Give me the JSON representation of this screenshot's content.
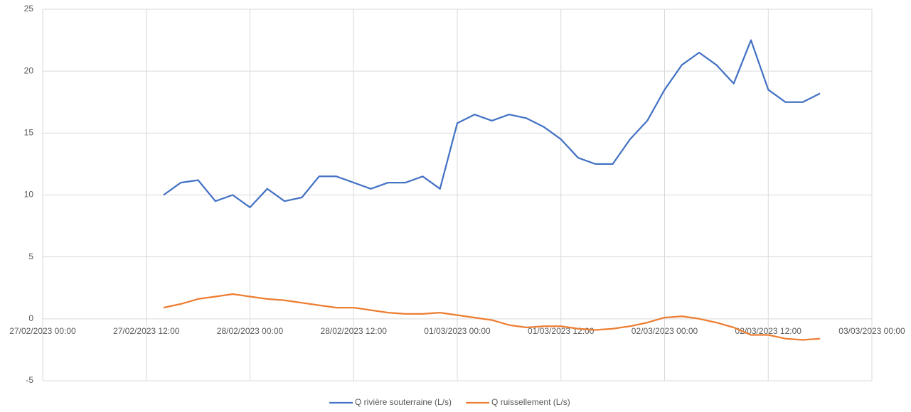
{
  "chart_data": {
    "type": "line",
    "x": [
      "27/02/2023 14:00",
      "27/02/2023 16:00",
      "27/02/2023 18:00",
      "27/02/2023 20:00",
      "27/02/2023 22:00",
      "28/02/2023 00:00",
      "28/02/2023 02:00",
      "28/02/2023 04:00",
      "28/02/2023 06:00",
      "28/02/2023 08:00",
      "28/02/2023 10:00",
      "28/02/2023 12:00",
      "28/02/2023 14:00",
      "28/02/2023 16:00",
      "28/02/2023 18:00",
      "28/02/2023 20:00",
      "28/02/2023 22:00",
      "01/03/2023 00:00",
      "01/03/2023 02:00",
      "01/03/2023 04:00",
      "01/03/2023 06:00",
      "01/03/2023 08:00",
      "01/03/2023 10:00",
      "01/03/2023 12:00",
      "01/03/2023 14:00",
      "01/03/2023 16:00",
      "01/03/2023 18:00",
      "01/03/2023 20:00",
      "01/03/2023 22:00",
      "02/03/2023 00:00",
      "02/03/2023 02:00",
      "02/03/2023 04:00",
      "02/03/2023 06:00",
      "02/03/2023 08:00",
      "02/03/2023 10:00",
      "02/03/2023 12:00",
      "02/03/2023 14:00",
      "02/03/2023 16:00",
      "02/03/2023 18:00"
    ],
    "series": [
      {
        "name": "Q rivière souterraine (L/s)",
        "color": "#4472c4",
        "values": [
          10.0,
          11.0,
          11.2,
          9.5,
          10.0,
          9.0,
          10.5,
          9.5,
          9.8,
          11.5,
          11.5,
          11.0,
          10.5,
          11.0,
          11.0,
          11.5,
          10.5,
          15.8,
          16.5,
          16.0,
          16.5,
          16.2,
          15.5,
          14.5,
          13.0,
          12.5,
          12.5,
          14.5,
          16.0,
          18.5,
          20.5,
          21.5,
          20.5,
          19.0,
          22.5,
          18.5,
          17.5,
          17.5,
          18.2
        ]
      },
      {
        "name": "Q ruissellement (L/s)",
        "color": "#ed7d31",
        "values": [
          0.9,
          1.2,
          1.6,
          1.8,
          2.0,
          1.8,
          1.6,
          1.5,
          1.3,
          1.1,
          0.9,
          0.9,
          0.7,
          0.5,
          0.4,
          0.4,
          0.5,
          0.3,
          0.1,
          -0.1,
          -0.5,
          -0.7,
          -0.6,
          -0.6,
          -0.8,
          -0.9,
          -0.8,
          -0.6,
          -0.3,
          0.1,
          0.2,
          0.0,
          -0.3,
          -0.7,
          -1.3,
          -1.3,
          -1.6,
          -1.7,
          -1.6
        ]
      }
    ],
    "xlim": [
      "27/02/2023 00:00",
      "03/03/2023 00:00"
    ],
    "xticks": [
      "27/02/2023 00:00",
      "27/02/2023 12:00",
      "28/02/2023 00:00",
      "28/02/2023 12:00",
      "01/03/2023 00:00",
      "01/03/2023 12:00",
      "02/03/2023 00:00",
      "02/03/2023 12:00",
      "03/03/2023 00:00"
    ],
    "ylim": [
      -5,
      25
    ],
    "yticks": [
      -5,
      0,
      5,
      10,
      15,
      20,
      25
    ],
    "grid": true
  }
}
